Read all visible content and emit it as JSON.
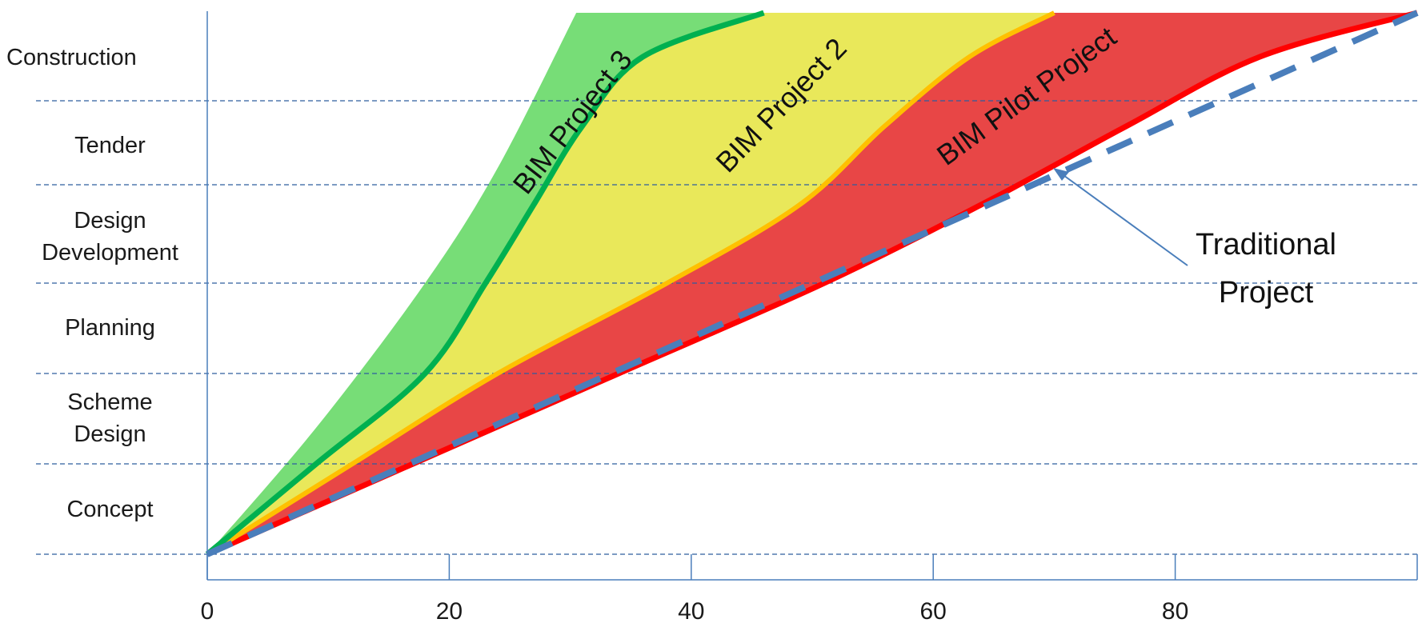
{
  "chart_data": {
    "type": "area",
    "x_ticks": [
      "0",
      "20",
      "40",
      "60",
      "80"
    ],
    "xlim": [
      0,
      100
    ],
    "stages": [
      {
        "name": "Concept",
        "lines": [
          "Concept"
        ]
      },
      {
        "name": "Scheme Design",
        "lines": [
          "Scheme",
          "Design"
        ]
      },
      {
        "name": "Planning",
        "lines": [
          "Planning"
        ]
      },
      {
        "name": "Design Development",
        "lines": [
          "Design",
          "Development"
        ]
      },
      {
        "name": "Tender",
        "lines": [
          "Tender"
        ]
      },
      {
        "name": "Construction",
        "lines": [
          "Construction"
        ]
      }
    ],
    "ylim": [
      0,
      6
    ],
    "series": [
      {
        "name": "BIM Project 3",
        "color": "#00b050",
        "fill": "#77dd77",
        "points": [
          [
            0,
            0
          ],
          [
            9,
            1
          ],
          [
            18,
            2
          ],
          [
            23,
            3
          ],
          [
            27,
            3.8
          ],
          [
            31,
            4.7
          ],
          [
            36,
            5.5
          ],
          [
            46,
            6
          ]
        ]
      },
      {
        "name": "BIM Project 2",
        "color": "#ffc000",
        "fill": "#e9e85a",
        "points": [
          [
            0,
            0
          ],
          [
            12,
            1
          ],
          [
            24,
            2
          ],
          [
            38,
            3
          ],
          [
            49,
            3.8
          ],
          [
            56,
            4.7
          ],
          [
            63,
            5.5
          ],
          [
            70,
            6
          ]
        ]
      },
      {
        "name": "BIM Pilot Project",
        "color": "#ff0000",
        "fill": "#e84646",
        "points": [
          [
            0,
            0
          ],
          [
            17,
            1
          ],
          [
            34,
            2
          ],
          [
            51,
            3
          ],
          [
            64,
            3.8
          ],
          [
            76,
            4.7
          ],
          [
            87,
            5.5
          ],
          [
            100,
            6
          ]
        ]
      },
      {
        "name": "Traditional Project",
        "color": "#4a7ebb",
        "dashed": true,
        "points": [
          [
            0,
            0
          ],
          [
            100,
            6
          ]
        ]
      }
    ],
    "band_left_edge": [
      [
        30.5,
        6
      ],
      [
        24,
        4.2
      ],
      [
        18,
        3
      ],
      [
        9,
        1.4
      ],
      [
        0,
        0
      ]
    ],
    "annotations": {
      "band_labels": [
        "BIM Project 3",
        "BIM Project 2",
        "BIM Pilot Project"
      ],
      "traditional_label": [
        "Traditional",
        "Project"
      ]
    },
    "grid": "horizontal dashed at stage boundaries"
  }
}
